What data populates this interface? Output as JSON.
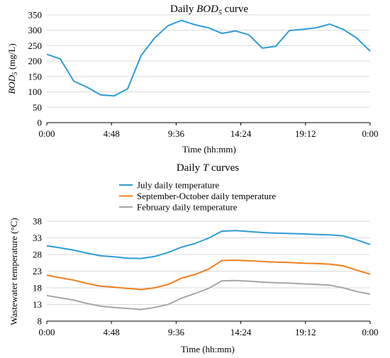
{
  "chart_data": [
    {
      "type": "line",
      "title_prefix": "Daily ",
      "title_var": "BOD",
      "title_sub": "5",
      "title_suffix": " curve",
      "xlabel": "Time (hh:mm)",
      "ylabel_var": "BOD",
      "ylabel_sub": "5",
      "ylabel_suffix": " (mg/L)",
      "x_ticks": [
        "0:00",
        "4:48",
        "9:36",
        "14:24",
        "19:12",
        "0:00"
      ],
      "y_ticks": [
        0,
        50,
        100,
        150,
        200,
        250,
        300,
        350
      ],
      "xlim": [
        0,
        24
      ],
      "ylim": [
        0,
        350
      ],
      "grid": "horizontal",
      "series": [
        {
          "color": "#2E9BD6",
          "x": [
            0,
            1,
            2,
            3,
            4,
            5,
            6,
            7,
            8,
            9,
            10,
            11,
            12,
            13,
            14,
            15,
            16,
            17,
            18,
            19,
            20,
            21,
            22,
            23,
            24
          ],
          "values": [
            222,
            207,
            135,
            115,
            90,
            87,
            110,
            218,
            275,
            315,
            332,
            318,
            308,
            290,
            298,
            285,
            242,
            248,
            299,
            303,
            308,
            320,
            303,
            275,
            232
          ]
        }
      ]
    },
    {
      "type": "line",
      "title_prefix": "Daily ",
      "title_var": "T",
      "title_suffix": " curves",
      "xlabel": "Time (hh:mm)",
      "ylabel": "Wastewater temperature (°C)",
      "x_ticks": [
        "0:00",
        "4:48",
        "9:36",
        "14:24",
        "19:12",
        "0:00"
      ],
      "y_ticks": [
        8,
        13,
        18,
        23,
        28,
        33,
        38
      ],
      "xlim": [
        0,
        24
      ],
      "ylim": [
        8,
        38
      ],
      "grid": "horizontal",
      "legend": "top-center",
      "series": [
        {
          "name": "July daily temperature",
          "color": "#2E9BD6",
          "x": [
            0,
            1,
            2,
            3,
            4,
            5,
            6,
            7,
            8,
            9,
            10,
            11,
            12,
            13,
            14,
            15,
            16,
            17,
            18,
            19,
            20,
            21,
            22,
            23,
            24
          ],
          "values": [
            30.6,
            30.0,
            29.3,
            28.4,
            27.6,
            27.3,
            26.9,
            26.8,
            27.4,
            28.6,
            30.2,
            31.3,
            32.9,
            35.0,
            35.2,
            34.9,
            34.6,
            34.4,
            34.3,
            34.2,
            34.0,
            33.9,
            33.6,
            32.4,
            31.0
          ]
        },
        {
          "name": "September-October daily temperature",
          "color": "#F07F1E",
          "x": [
            0,
            1,
            2,
            3,
            4,
            5,
            6,
            7,
            8,
            9,
            10,
            11,
            12,
            13,
            14,
            15,
            16,
            17,
            18,
            19,
            20,
            21,
            22,
            23,
            24
          ],
          "values": [
            21.8,
            21.0,
            20.3,
            19.3,
            18.5,
            18.2,
            17.8,
            17.5,
            18.0,
            19.0,
            20.9,
            22.0,
            23.6,
            26.2,
            26.3,
            26.1,
            25.9,
            25.7,
            25.6,
            25.4,
            25.3,
            25.1,
            24.6,
            23.3,
            22.1
          ]
        },
        {
          "name": "February daily temperature",
          "color": "#A6A6A6",
          "x": [
            0,
            1,
            2,
            3,
            4,
            5,
            6,
            7,
            8,
            9,
            10,
            11,
            12,
            13,
            14,
            15,
            16,
            17,
            18,
            19,
            20,
            21,
            22,
            23,
            24
          ],
          "values": [
            15.7,
            15.0,
            14.3,
            13.3,
            12.5,
            12.1,
            11.8,
            11.5,
            12.1,
            13.0,
            14.9,
            16.3,
            17.8,
            20.1,
            20.2,
            20.0,
            19.7,
            19.5,
            19.4,
            19.2,
            19.0,
            18.8,
            18.0,
            16.9,
            16.1
          ]
        }
      ]
    }
  ]
}
